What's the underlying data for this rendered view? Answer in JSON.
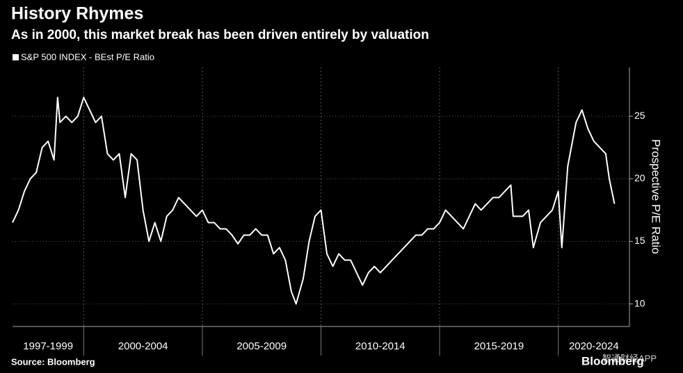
{
  "chart_data": {
    "type": "line",
    "title": "History Rhymes",
    "subtitle": "As in 2000, this market break has been driven entirely by valuation",
    "source": "Source: Bloomberg",
    "logo": "Bloomberg",
    "watermark": "智通财经APP",
    "y_label": "Prospective P/E Ratio",
    "x_periods": [
      "1997-1999",
      "2000-2004",
      "2005-2009",
      "2010-2014",
      "2015-2019",
      "2020-2024"
    ],
    "xlim": [
      1997,
      2023
    ],
    "xticks": [
      2000,
      2005,
      2010,
      2015,
      2020
    ],
    "ylim": [
      8.2,
      28.9
    ],
    "yticks": [
      10,
      15,
      20,
      25
    ],
    "grid": true,
    "x": [
      1997.0,
      1997.25,
      1997.5,
      1997.75,
      1998.0,
      1998.25,
      1998.5,
      1998.75,
      1998.9,
      1999.0,
      1999.25,
      1999.5,
      1999.75,
      2000.0,
      2000.25,
      2000.5,
      2000.75,
      2001.0,
      2001.25,
      2001.5,
      2001.75,
      2002.0,
      2002.25,
      2002.5,
      2002.75,
      2003.0,
      2003.25,
      2003.5,
      2003.75,
      2004.0,
      2004.25,
      2004.5,
      2004.75,
      2005.0,
      2005.25,
      2005.5,
      2005.75,
      2006.0,
      2006.25,
      2006.5,
      2006.75,
      2007.0,
      2007.25,
      2007.5,
      2007.75,
      2008.0,
      2008.25,
      2008.5,
      2008.75,
      2008.95,
      2009.25,
      2009.5,
      2009.75,
      2010.0,
      2010.25,
      2010.5,
      2010.75,
      2011.0,
      2011.25,
      2011.5,
      2011.75,
      2012.0,
      2012.25,
      2012.5,
      2012.75,
      2013.0,
      2013.25,
      2013.5,
      2013.75,
      2014.0,
      2014.25,
      2014.5,
      2014.75,
      2015.0,
      2015.25,
      2015.5,
      2015.75,
      2016.0,
      2016.25,
      2016.5,
      2016.75,
      2017.0,
      2017.25,
      2017.5,
      2017.75,
      2018.0,
      2018.1,
      2018.5,
      2018.75,
      2018.95,
      2019.25,
      2019.5,
      2019.75,
      2020.0,
      2020.15,
      2020.4,
      2020.75,
      2021.0,
      2021.25,
      2021.5,
      2021.75,
      2022.0,
      2022.15,
      2022.37
    ],
    "series": [
      {
        "name": "S&P 500 INDEX - BEst P/E Ratio",
        "color": "#ffffff",
        "values": [
          16.5,
          17.5,
          19,
          20,
          20.5,
          22.5,
          23,
          21.5,
          26.5,
          24.5,
          25,
          24.5,
          25,
          26.5,
          25.5,
          24.5,
          25,
          22,
          21.5,
          22,
          18.5,
          22,
          21.5,
          17.5,
          15,
          16.5,
          15,
          17,
          17.5,
          18.5,
          18,
          17.5,
          17,
          17.5,
          16.5,
          16.5,
          16,
          16,
          15.5,
          14.8,
          15.5,
          15.5,
          16,
          15.5,
          15.5,
          14,
          14.5,
          13.5,
          11,
          10,
          12,
          15,
          17,
          17.5,
          14,
          13,
          14,
          13.5,
          13.5,
          12.5,
          11.5,
          12.5,
          13,
          12.5,
          13,
          13.5,
          14,
          14.5,
          15,
          15.5,
          15.5,
          16,
          16,
          16.5,
          17.5,
          17,
          16.5,
          16,
          17,
          18,
          17.5,
          18,
          18.5,
          18.5,
          19,
          19.5,
          17,
          17,
          17.5,
          14.5,
          16.5,
          17,
          17.5,
          19,
          14.5,
          21,
          24.5,
          25.5,
          24,
          23,
          22.5,
          22,
          20,
          18
        ]
      }
    ]
  }
}
